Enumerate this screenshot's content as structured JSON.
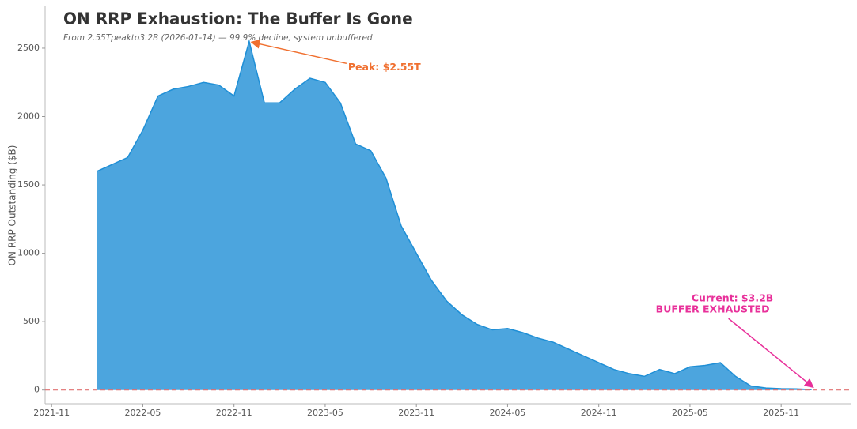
{
  "chart_data": {
    "type": "area",
    "title": "ON RRP Exhaustion: The Buffer Is Gone",
    "subtitle": "From 2.55Tpeakto3.2B (2026-01-14) — 99.9% decline, system unbuffered",
    "y_label": "ON RRP Outstanding ($B)",
    "x": [
      "2022-02",
      "2022-03",
      "2022-04",
      "2022-05",
      "2022-06",
      "2022-07",
      "2022-08",
      "2022-09",
      "2022-10",
      "2022-11",
      "2022-12",
      "2023-01",
      "2023-02",
      "2023-03",
      "2023-04",
      "2023-05",
      "2023-06",
      "2023-07",
      "2023-08",
      "2023-09",
      "2023-10",
      "2023-11",
      "2023-12",
      "2024-01",
      "2024-02",
      "2024-03",
      "2024-04",
      "2024-05",
      "2024-06",
      "2024-07",
      "2024-08",
      "2024-09",
      "2024-10",
      "2024-11",
      "2024-12",
      "2025-01",
      "2025-02",
      "2025-03",
      "2025-04",
      "2025-05",
      "2025-06",
      "2025-07",
      "2025-08",
      "2025-09",
      "2025-10",
      "2025-11",
      "2025-12",
      "2026-01"
    ],
    "series": [
      {
        "name": "ON RRP",
        "color": "#1f8fd6",
        "values": [
          1600,
          1650,
          1700,
          1900,
          2150,
          2200,
          2220,
          2250,
          2230,
          2150,
          2550,
          2100,
          2100,
          2200,
          2280,
          2250,
          2100,
          1800,
          1750,
          1550,
          1200,
          1000,
          800,
          650,
          550,
          480,
          440,
          450,
          420,
          380,
          350,
          300,
          250,
          200,
          150,
          120,
          100,
          150,
          120,
          170,
          180,
          200,
          100,
          30,
          15,
          10,
          8,
          3.2
        ]
      }
    ],
    "xlim": [
      "2021-10",
      "2026-03"
    ],
    "xticks": [
      "2021-11",
      "2022-05",
      "2022-11",
      "2023-05",
      "2023-11",
      "2024-05",
      "2024-11",
      "2025-05",
      "2025-11"
    ],
    "ylim": [
      -100,
      2650
    ],
    "yticks": [
      0,
      500,
      1000,
      1500,
      2000,
      2500
    ],
    "reference_line": {
      "value": 0,
      "color": "#e07070"
    },
    "annotations": [
      {
        "text": "Peak: $2.55T",
        "point": 10,
        "color": "#f07030"
      },
      {
        "text": "Current: $3.2B",
        "text2": "BUFFER EXHAUSTED",
        "point": 47,
        "color": "#e8309a"
      }
    ]
  }
}
